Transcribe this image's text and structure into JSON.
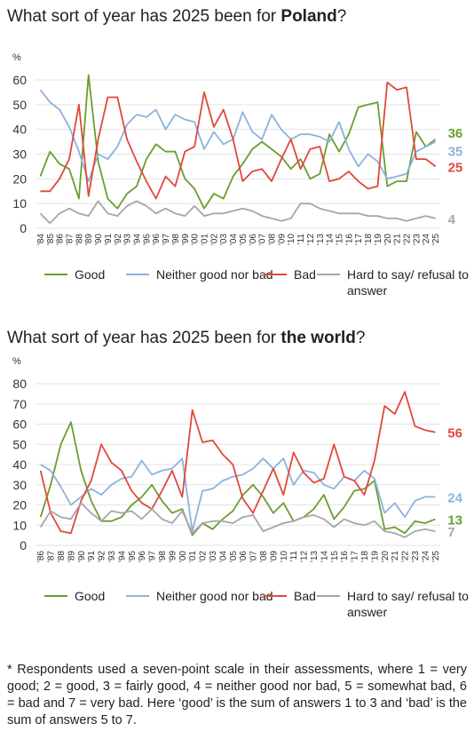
{
  "chart_data": [
    {
      "type": "line",
      "title": {
        "text": "What sort of year has 2025 been for ",
        "emphasis": "Poland",
        "suffix": "?"
      },
      "y_label": "%",
      "categories": [
        "'84",
        "'85",
        "'86",
        "'87",
        "'88",
        "'89",
        "'90",
        "'91",
        "'92",
        "'93",
        "'94",
        "'95",
        "'96",
        "'97",
        "'98",
        "'99",
        "'00",
        "'01",
        "'02",
        "'03",
        "'04",
        "'05",
        "'06",
        "'07",
        "'08",
        "'09",
        "'10",
        "'11",
        "'12",
        "'13",
        "'14",
        "'15",
        "'16",
        "'17",
        "'18",
        "'19",
        "'20",
        "'21",
        "'22",
        "'23",
        "'24",
        "'25"
      ],
      "series": [
        {
          "name": "Good",
          "color": "#6a9e2f",
          "values": [
            21,
            31,
            26,
            24,
            12,
            62,
            27,
            12,
            8,
            14,
            17,
            28,
            34,
            31,
            31,
            20,
            16,
            8,
            14,
            12,
            21,
            26,
            32,
            35,
            32,
            29,
            24,
            28,
            20,
            22,
            38,
            31,
            38,
            49,
            50,
            51,
            17,
            19,
            19,
            39,
            33,
            36
          ]
        },
        {
          "name": "Neither good nor bad",
          "color": "#8cb2de",
          "values": [
            56,
            51,
            48,
            41,
            31,
            19,
            30,
            28,
            33,
            42,
            46,
            45,
            48,
            40,
            46,
            44,
            43,
            32,
            39,
            34,
            36,
            47,
            39,
            36,
            46,
            40,
            36,
            38,
            38,
            37,
            35,
            43,
            32,
            25,
            30,
            27,
            20,
            21,
            22,
            31,
            33,
            35
          ]
        },
        {
          "name": "Bad",
          "color": "#e2483b",
          "values": [
            15,
            15,
            20,
            28,
            50,
            13,
            36,
            53,
            53,
            36,
            27,
            19,
            12,
            21,
            17,
            31,
            33,
            55,
            41,
            48,
            36,
            19,
            23,
            24,
            19,
            28,
            36,
            24,
            32,
            33,
            19,
            20,
            23,
            19,
            16,
            17,
            59,
            56,
            57,
            28,
            28,
            25
          ]
        },
        {
          "name": "Hard to say/ refusal to answer",
          "color": "#a6a6a6",
          "values": [
            6,
            2,
            6,
            8,
            6,
            5,
            11,
            6,
            5,
            9,
            11,
            9,
            6,
            8,
            6,
            5,
            9,
            5,
            6,
            6,
            7,
            8,
            7,
            5,
            4,
            3,
            4,
            10,
            10,
            8,
            7,
            6,
            6,
            6,
            5,
            5,
            4,
            4,
            3,
            4,
            5,
            4
          ]
        }
      ],
      "ylim": [
        0,
        60
      ],
      "yticks": [
        0,
        10,
        20,
        30,
        40,
        50,
        60
      ],
      "grid": true
    },
    {
      "type": "line",
      "title": {
        "text": "What sort of year has 2025 been for ",
        "emphasis": "the world",
        "suffix": "?"
      },
      "y_label": "%",
      "categories": [
        "'86",
        "'87",
        "'88",
        "'89",
        "'90",
        "'91",
        "'92",
        "'93",
        "'94",
        "'95",
        "'96",
        "'97",
        "'98",
        "'99",
        "'00",
        "'01",
        "'02",
        "'03",
        "'04",
        "'05",
        "'06",
        "'07",
        "'08",
        "'09",
        "'10",
        "'11",
        "'12",
        "'13",
        "'14",
        "'15",
        "'16",
        "'17",
        "'18",
        "'19",
        "'20",
        "'21",
        "'22",
        "'23",
        "'24",
        "'25"
      ],
      "series": [
        {
          "name": "Good",
          "color": "#6a9e2f",
          "values": [
            14,
            30,
            50,
            61,
            37,
            22,
            12,
            12,
            14,
            20,
            24,
            30,
            22,
            16,
            18,
            5,
            11,
            8,
            13,
            17,
            25,
            30,
            24,
            16,
            21,
            12,
            14,
            18,
            25,
            13,
            19,
            27,
            28,
            32,
            8,
            9,
            6,
            12,
            11,
            13
          ]
        },
        {
          "name": "Neither good nor bad",
          "color": "#8cb2de",
          "values": [
            40,
            37,
            29,
            20,
            24,
            28,
            25,
            30,
            33,
            34,
            42,
            35,
            37,
            38,
            43,
            7,
            27,
            28,
            32,
            34,
            35,
            38,
            43,
            38,
            43,
            30,
            37,
            36,
            30,
            28,
            34,
            32,
            37,
            33,
            16,
            21,
            14,
            22,
            24,
            24
          ]
        },
        {
          "name": "Bad",
          "color": "#e2483b",
          "values": [
            37,
            16,
            7,
            6,
            22,
            32,
            50,
            41,
            37,
            27,
            21,
            18,
            27,
            37,
            24,
            67,
            51,
            52,
            45,
            40,
            23,
            16,
            27,
            38,
            25,
            46,
            36,
            31,
            33,
            50,
            34,
            32,
            25,
            42,
            69,
            65,
            76,
            59,
            57,
            56
          ]
        },
        {
          "name": "Hard to say/ refusal to answer",
          "color": "#a6a6a6",
          "values": [
            9,
            17,
            14,
            13,
            21,
            16,
            12,
            17,
            16,
            17,
            13,
            18,
            13,
            11,
            17,
            6,
            11,
            12,
            12,
            11,
            14,
            15,
            7,
            9,
            11,
            12,
            14,
            15,
            13,
            9,
            13,
            11,
            10,
            12,
            7,
            6,
            4,
            7,
            8,
            7
          ]
        }
      ],
      "ylim": [
        0,
        80
      ],
      "yticks": [
        0,
        10,
        20,
        30,
        40,
        50,
        60,
        70,
        80
      ],
      "grid": true
    }
  ],
  "footnote": "* Respondents used a seven-point scale in their assessments, where 1 = very good; 2 = good, 3 = fairly good, 4 = neither good nor bad, 5 = somewhat bad, 6 = bad and 7 = very bad. Here ‘good’ is the sum of answers 1 to 3 and ‘bad’ is the sum of answers 5 to 7."
}
